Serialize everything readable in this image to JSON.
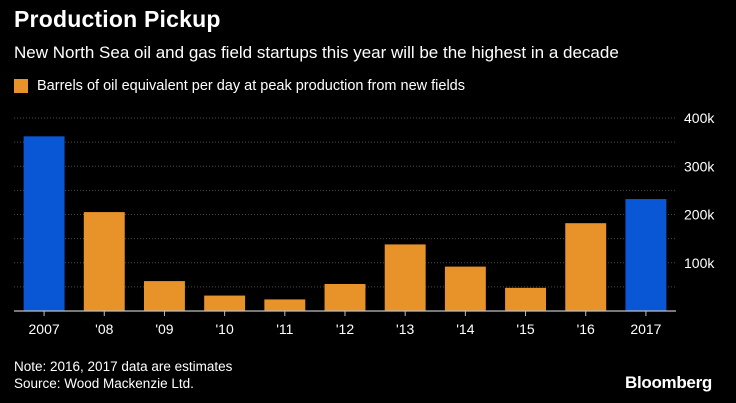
{
  "header": {
    "title": "Production Pickup",
    "subtitle": "New North Sea oil and gas field startups this year will be the highest in a decade"
  },
  "legend": {
    "label": "Barrels of oil equivalent per day at peak production from new fields",
    "color": "#E8922A"
  },
  "colors": {
    "primary": "#E8922A",
    "highlight": "#0A57D6",
    "grid": "#4a4a4a",
    "axis": "#bfbfbf"
  },
  "chart_data": {
    "type": "bar",
    "title": "Production Pickup",
    "xlabel": "",
    "ylabel": "",
    "ylim": [
      0,
      400000
    ],
    "yticks": [
      100000,
      200000,
      300000,
      400000
    ],
    "ytick_labels": [
      "100k",
      "200k",
      "300k",
      "400k"
    ],
    "categories": [
      "2007",
      "'08",
      "'09",
      "'10",
      "'11",
      "'12",
      "'13",
      "'14",
      "'15",
      "'16",
      "2017"
    ],
    "values": [
      362000,
      205000,
      62000,
      32000,
      24000,
      56000,
      138000,
      92000,
      48000,
      182000,
      232000
    ],
    "highlighted": [
      "2007",
      "2017"
    ],
    "series": [
      {
        "name": "Barrels of oil equivalent per day at peak production from new fields",
        "values": [
          362000,
          205000,
          62000,
          32000,
          24000,
          56000,
          138000,
          92000,
          48000,
          182000,
          232000
        ]
      }
    ]
  },
  "footer": {
    "note": "Note: 2016, 2017 data are estimates",
    "source": "Source: Wood Mackenzie Ltd.",
    "brand": "Bloomberg"
  }
}
